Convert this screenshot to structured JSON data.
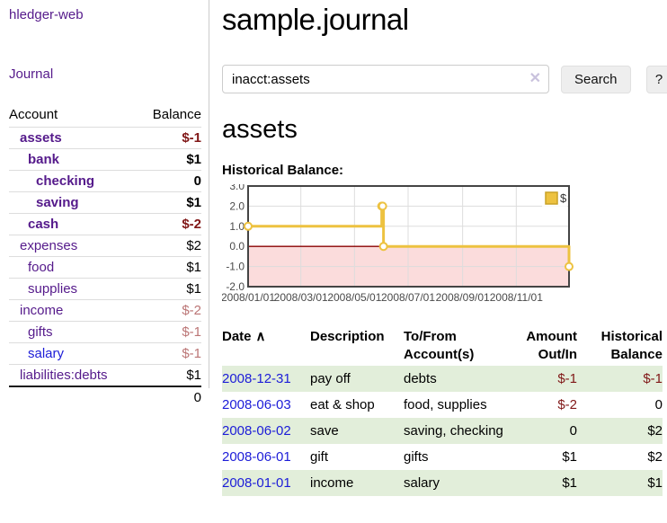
{
  "app_title": "hledger-web",
  "sidebar": {
    "journal_link": "Journal",
    "accounts_table": {
      "headers": {
        "account": "Account",
        "balance": "Balance"
      },
      "rows": [
        {
          "account": "assets",
          "balance": "$-1"
        },
        {
          "account": "bank",
          "balance": "$1"
        },
        {
          "account": "checking",
          "balance": "0"
        },
        {
          "account": "saving",
          "balance": "$1"
        },
        {
          "account": "cash",
          "balance": "$-2"
        },
        {
          "account": "expenses",
          "balance": "$2"
        },
        {
          "account": "food",
          "balance": "$1"
        },
        {
          "account": "supplies",
          "balance": "$1"
        },
        {
          "account": "income",
          "balance": "$-2"
        },
        {
          "account": "gifts",
          "balance": "$-1"
        },
        {
          "account": "salary",
          "balance": "$-1"
        },
        {
          "account": "liabilities:debts",
          "balance": "$1"
        }
      ],
      "total": "0"
    }
  },
  "header": {
    "title": "sample.journal"
  },
  "search": {
    "value": "inacct:assets",
    "clear_icon": "✕",
    "button_label": "Search",
    "help_label": "?"
  },
  "main": {
    "heading": "assets",
    "chart_label": "Historical Balance:"
  },
  "chart_data": {
    "type": "line",
    "step": "after",
    "title": "Historical Balance",
    "series": [
      {
        "name": "$",
        "color": "#edc240",
        "points": [
          [
            "2008-01-01",
            1
          ],
          [
            "2008-06-01",
            2
          ],
          [
            "2008-06-02",
            2
          ],
          [
            "2008-06-03",
            0
          ],
          [
            "2008-12-31",
            -1
          ]
        ]
      }
    ],
    "x_ticks": [
      "2008/01/01",
      "2008/03/01",
      "2008/05/01",
      "2008/07/01",
      "2008/09/01",
      "2008/11/01"
    ],
    "y_ticks": [
      3.0,
      2.0,
      1.0,
      0.0,
      -1.0,
      -2.0
    ],
    "xlim": [
      "2008-01-01",
      "2008-12-31"
    ],
    "ylim": [
      -2,
      3
    ],
    "grid": true,
    "legend": "$",
    "legend_position": "top-right",
    "colors": {
      "line": "#edc240",
      "marker_fill": "#ffffff",
      "grid": "#dddddd",
      "border": "#444444",
      "zero_line": "#8b0000",
      "negative_region": "#fbdcdc",
      "tick_text": "#4a4a4a",
      "legend_swatch_border": "#c9a227"
    }
  },
  "transactions_table": {
    "sort_indicator": "∧",
    "headers": [
      {
        "l1": "Date",
        "l2": ""
      },
      {
        "l1": "Description",
        "l2": ""
      },
      {
        "l1": "To/From",
        "l2": "Account(s)"
      },
      {
        "l1": "Amount",
        "l2": "Out/In"
      },
      {
        "l1": "Historical",
        "l2": "Balance"
      }
    ],
    "rows": [
      {
        "date": "2008-12-31",
        "description": "pay off",
        "accounts": "debts",
        "amount": "$-1",
        "balance": "$-1"
      },
      {
        "date": "2008-06-03",
        "description": "eat & shop",
        "accounts": "food, supplies",
        "amount": "$-2",
        "balance": "0"
      },
      {
        "date": "2008-06-02",
        "description": "save",
        "accounts": "saving, checking",
        "amount": "0",
        "balance": "$2"
      },
      {
        "date": "2008-06-01",
        "description": "gift",
        "accounts": "gifts",
        "amount": "$1",
        "balance": "$2"
      },
      {
        "date": "2008-01-01",
        "description": "income",
        "accounts": "salary",
        "amount": "$1",
        "balance": "$1"
      }
    ]
  }
}
